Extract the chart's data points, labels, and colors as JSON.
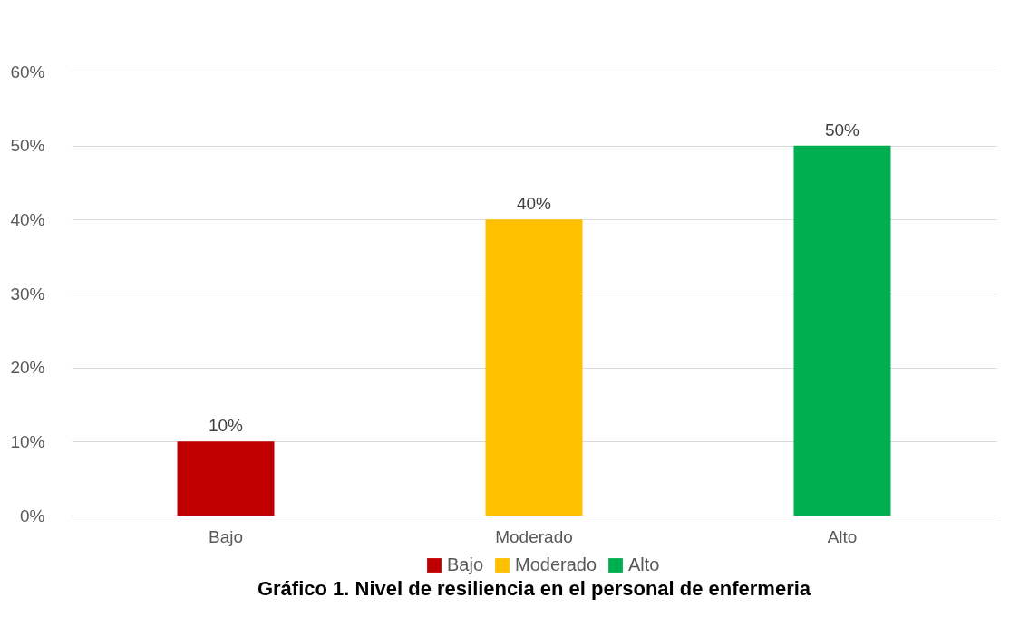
{
  "chart_data": {
    "type": "bar",
    "title": "Gráfico 1. Nivel de resiliencia en el personal de enfermeria",
    "categories": [
      "Bajo",
      "Moderado",
      "Alto"
    ],
    "stacked": true,
    "series": [
      {
        "name": "Bajo",
        "color": "#c00000",
        "values": [
          10,
          null,
          null
        ],
        "value_labels": [
          "10%",
          null,
          null
        ]
      },
      {
        "name": "Moderado",
        "color": "#ffc000",
        "values": [
          null,
          40,
          null
        ],
        "value_labels": [
          null,
          "40%",
          null
        ]
      },
      {
        "name": "Alto",
        "color": "#00b050",
        "values": [
          null,
          null,
          50
        ],
        "value_labels": [
          null,
          null,
          "50%"
        ]
      }
    ],
    "ylim": [
      0,
      60
    ],
    "yticks": [
      {
        "value": 0,
        "label": "0%"
      },
      {
        "value": 10,
        "label": "10%"
      },
      {
        "value": 20,
        "label": "20%"
      },
      {
        "value": 30,
        "label": "30%"
      },
      {
        "value": 40,
        "label": "40%"
      },
      {
        "value": 50,
        "label": "50%"
      },
      {
        "value": 60,
        "label": "60%"
      }
    ],
    "grid": "y",
    "legend": "bottom"
  }
}
